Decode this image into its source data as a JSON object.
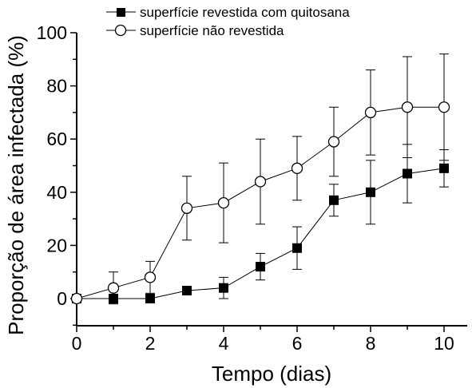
{
  "chart_data": {
    "type": "line",
    "xlabel": "Tempo (dias)",
    "ylabel": "Proporção de área infectada (%)",
    "xlim": [
      0,
      11
    ],
    "ylim": [
      -10,
      100
    ],
    "xticks": [
      0,
      2,
      4,
      6,
      8,
      10
    ],
    "yticks": [
      0,
      20,
      40,
      60,
      80,
      100
    ],
    "x": [
      0,
      1,
      2,
      3,
      4,
      5,
      6,
      7,
      8,
      9,
      10
    ],
    "legend_position": "top",
    "series": [
      {
        "name": "superfície revestida com quitosana",
        "marker": "filled-square",
        "values": [
          0,
          0,
          0,
          3,
          4,
          12,
          19,
          37,
          40,
          47,
          49
        ],
        "errors": [
          0,
          0,
          0,
          0,
          4,
          5,
          8,
          6,
          12,
          11,
          7
        ]
      },
      {
        "name": "superfície não revestida",
        "marker": "open-circle",
        "values": [
          0,
          4,
          8,
          34,
          36,
          44,
          49,
          59,
          70,
          72,
          72
        ],
        "errors": [
          0,
          6,
          6,
          12,
          15,
          16,
          12,
          13,
          16,
          19,
          20
        ]
      }
    ]
  }
}
